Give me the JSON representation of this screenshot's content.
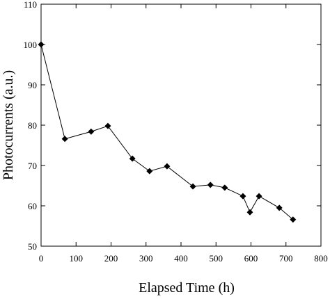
{
  "chart_data": {
    "type": "line",
    "x_label": "Elapsed Time (h)",
    "y_label": "Photocurrents (a.u.)",
    "x": [
      0,
      68,
      143,
      191,
      261,
      310,
      360,
      434,
      484,
      525,
      577,
      597,
      623,
      681,
      720
    ],
    "series": [
      {
        "color": "#000000",
        "values": [
          100,
          76.6,
          78.4,
          79.8,
          71.7,
          68.6,
          69.8,
          64.8,
          65.2,
          64.5,
          62.4,
          58.4,
          62.4,
          59.5,
          56.6
        ]
      }
    ],
    "xlim": [
      0,
      800
    ],
    "xticks": [
      0,
      100,
      200,
      300,
      400,
      500,
      600,
      700,
      800
    ],
    "ylim": [
      50,
      110
    ],
    "yticks": [
      50,
      60,
      70,
      80,
      90,
      100,
      110
    ],
    "grid": false
  }
}
